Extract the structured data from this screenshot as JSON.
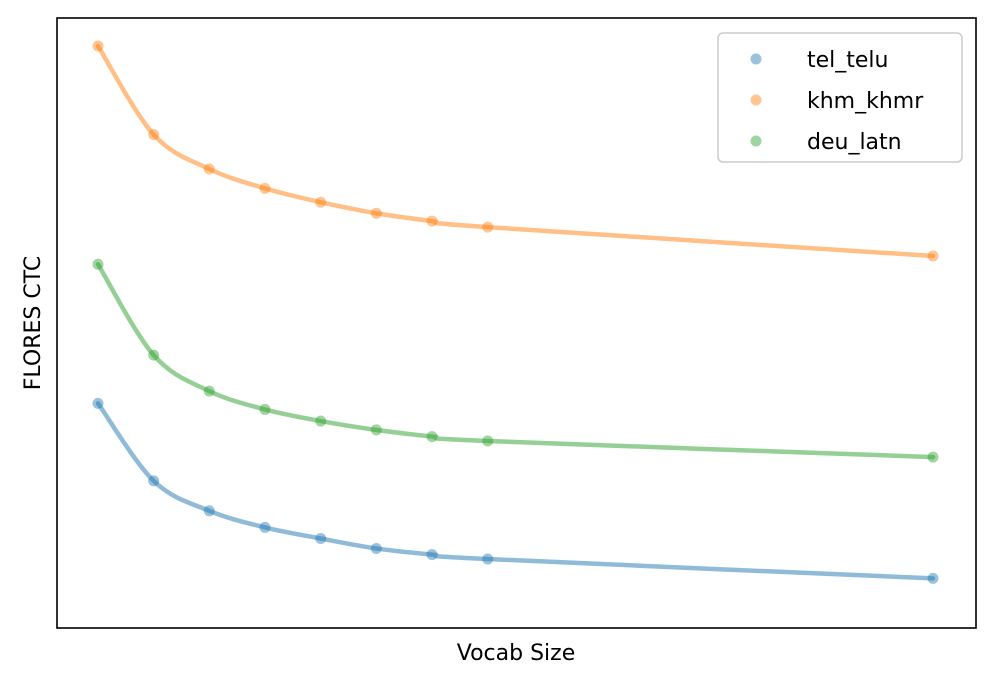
{
  "chart_data": {
    "type": "scatter",
    "title": "",
    "xlabel": "Vocab Size",
    "ylabel": "FLORES CTC",
    "x_ticks_shown": false,
    "y_ticks_shown": false,
    "grid": false,
    "legend_position": "top-right",
    "note": "Axes have no tick labels; x and y values are relative (normalized) positions read from the plot.",
    "x": [
      0.0,
      0.0667,
      0.1333,
      0.2,
      0.2667,
      0.3333,
      0.4,
      0.4667,
      1.0
    ],
    "series": [
      {
        "name": "tel_telu",
        "color": "#1f77b4",
        "values": [
          0.355,
          0.215,
          0.161,
          0.131,
          0.111,
          0.093,
          0.082,
          0.074,
          0.039
        ],
        "fit_curve": true
      },
      {
        "name": "khm_khmr",
        "color": "#ff7f0e",
        "values": [
          1.0,
          0.84,
          0.778,
          0.743,
          0.718,
          0.698,
          0.684,
          0.673,
          0.621
        ],
        "fit_curve": true
      },
      {
        "name": "deu_latn",
        "color": "#2ca02c",
        "values": [
          0.606,
          0.442,
          0.377,
          0.344,
          0.323,
          0.307,
          0.295,
          0.287,
          0.258
        ],
        "fit_curve": true
      }
    ]
  }
}
